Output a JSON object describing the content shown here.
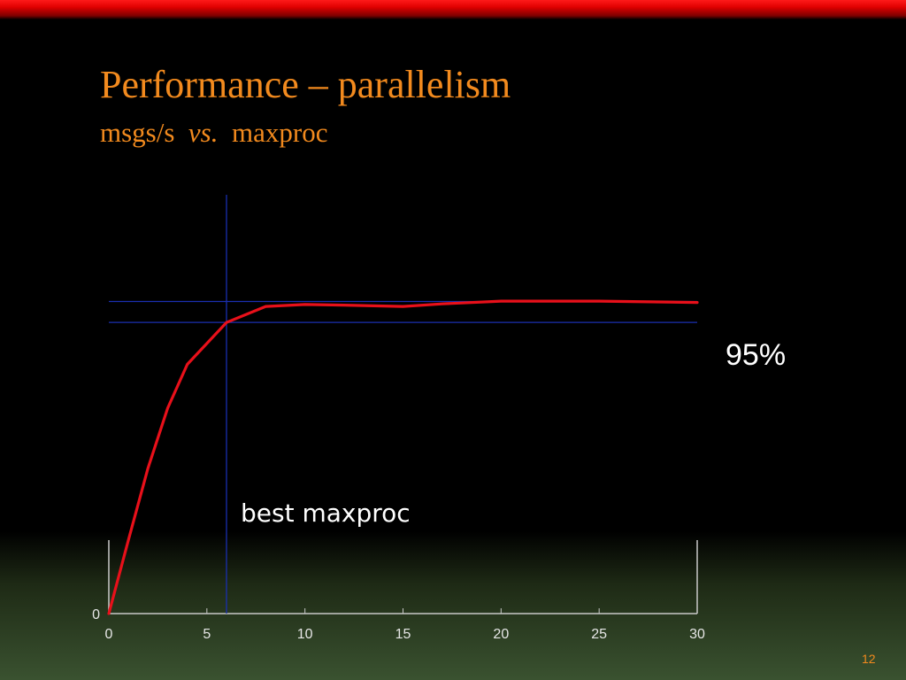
{
  "slide": {
    "title": "Performance – parallelism",
    "subtitle_part1": "msgs/s",
    "subtitle_part2": "vs.",
    "subtitle_part3": "maxproc",
    "annotation_percent": "95%",
    "annotation_best": "best maxproc",
    "slide_number": "12"
  },
  "colors": {
    "title": "#f28a1e",
    "line": "#e8101a",
    "guide": "#1a2fb0",
    "axis": "#c8c8c8"
  },
  "chart_data": {
    "type": "line",
    "x": [
      0,
      1,
      2,
      3,
      4,
      6,
      8,
      10,
      12,
      15,
      17,
      20,
      25,
      30
    ],
    "y": [
      0,
      0.37,
      0.73,
      1.03,
      1.25,
      1.46,
      1.54,
      1.55,
      1.547,
      1.54,
      1.553,
      1.567,
      1.567,
      1.56
    ],
    "xlim": [
      0,
      30
    ],
    "ylim": [
      0,
      2.1
    ],
    "x_ticks": [
      "0",
      "5",
      "10",
      "15",
      "20",
      "25",
      "30"
    ],
    "y_ticks": [
      "0"
    ],
    "best_x": 6,
    "max_y": 1.565,
    "threshold_y": 1.46
  }
}
